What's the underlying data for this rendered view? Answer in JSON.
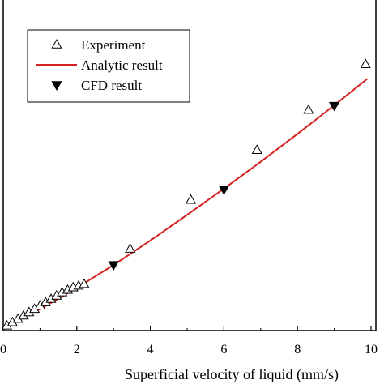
{
  "chart_data": {
    "type": "scatter",
    "xlabel": "Superficial velocity of liquid (mm/s)",
    "ylabel": "",
    "xlim": [
      0,
      10
    ],
    "x_ticks": [
      0,
      2,
      4,
      6,
      8,
      10
    ],
    "x_tick_labels": [
      "0",
      "2",
      "4",
      "6",
      "8",
      "10"
    ],
    "grid": false,
    "legend_position": "top-left",
    "series": [
      {
        "name": "Experiment",
        "kind": "scatter",
        "marker": "open-triangle-up",
        "color": "#000000",
        "x": [
          0.1,
          0.25,
          0.4,
          0.55,
          0.7,
          0.85,
          1.0,
          1.15,
          1.3,
          1.45,
          1.6,
          1.75,
          1.9,
          2.05,
          2.2,
          3.45,
          5.1,
          6.9,
          8.3,
          9.85
        ],
        "y": [
          0.1,
          0.18,
          0.26,
          0.34,
          0.42,
          0.5,
          0.58,
          0.66,
          0.74,
          0.82,
          0.9,
          0.96,
          1.02,
          1.06,
          1.1,
          1.95,
          3.13,
          4.33,
          5.3,
          6.4
        ]
      },
      {
        "name": "Analytic result",
        "kind": "line",
        "color": "#d42020",
        "x": [
          0.9,
          1.5,
          2.0,
          3.0,
          4.0,
          5.0,
          6.0,
          7.0,
          8.0,
          9.0,
          9.9
        ],
        "y": [
          0.45,
          0.75,
          1.01,
          1.56,
          2.15,
          2.77,
          3.4,
          4.05,
          4.72,
          5.41,
          6.05
        ]
      },
      {
        "name": "CFD result",
        "kind": "scatter",
        "marker": "filled-triangle-down",
        "color": "#000000",
        "x": [
          3.0,
          6.0,
          9.0
        ],
        "y": [
          1.56,
          3.38,
          5.4
        ]
      }
    ]
  }
}
